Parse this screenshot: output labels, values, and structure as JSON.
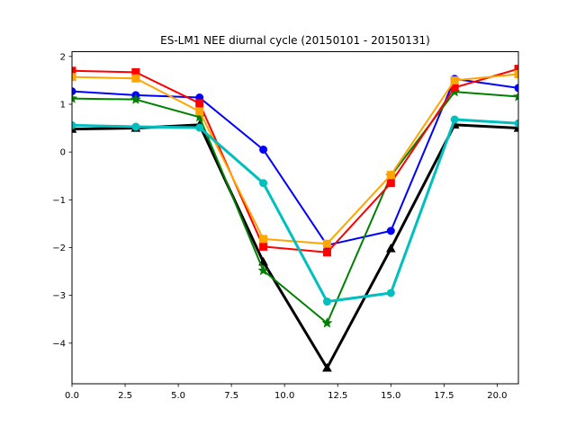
{
  "chart_data": {
    "type": "line",
    "title": "ES-LM1 NEE diurnal cycle (20150101 - 20150131)",
    "xlabel": "",
    "ylabel": "",
    "xlim": [
      0,
      21
    ],
    "ylim": [
      -4.85,
      2.1
    ],
    "grid": false,
    "legend": "none",
    "x": [
      0,
      3,
      6,
      9,
      12,
      15,
      18,
      21
    ],
    "xticks": [
      0.0,
      2.5,
      5.0,
      7.5,
      10.0,
      12.5,
      15.0,
      17.5,
      20.0
    ],
    "xtick_labels": [
      "0.0",
      "2.5",
      "5.0",
      "7.5",
      "10.0",
      "12.5",
      "15.0",
      "17.5",
      "20.0"
    ],
    "yticks": [
      -4,
      -3,
      -2,
      -1,
      0,
      1,
      2
    ],
    "ytick_labels": [
      "−4",
      "−3",
      "−2",
      "−1",
      "0",
      "1",
      "2"
    ],
    "series": [
      {
        "color": "#000000",
        "marker": "triangle",
        "width": 3,
        "values": [
          0.48,
          0.5,
          0.57,
          -2.3,
          -4.52,
          -2.02,
          0.57,
          0.5
        ]
      },
      {
        "color": "#0000ff",
        "marker": "circle",
        "width": 2,
        "values": [
          1.27,
          1.19,
          1.14,
          0.05,
          -1.95,
          -1.65,
          1.53,
          1.34
        ]
      },
      {
        "color": "#008000",
        "marker": "star",
        "width": 2,
        "values": [
          1.12,
          1.1,
          0.73,
          -2.48,
          -3.58,
          -0.5,
          1.26,
          1.16
        ]
      },
      {
        "color": "#ff0000",
        "marker": "square",
        "width": 2,
        "values": [
          1.7,
          1.67,
          1.02,
          -1.98,
          -2.1,
          -0.65,
          1.35,
          1.74
        ]
      },
      {
        "color": "#ffa500",
        "marker": "square",
        "width": 2,
        "values": [
          1.57,
          1.54,
          0.85,
          -1.82,
          -1.92,
          -0.48,
          1.5,
          1.63
        ]
      },
      {
        "color": "#00bfbf",
        "marker": "circle",
        "width": 3,
        "values": [
          0.56,
          0.53,
          0.51,
          -0.65,
          -3.13,
          -2.95,
          0.68,
          0.6
        ]
      }
    ]
  }
}
